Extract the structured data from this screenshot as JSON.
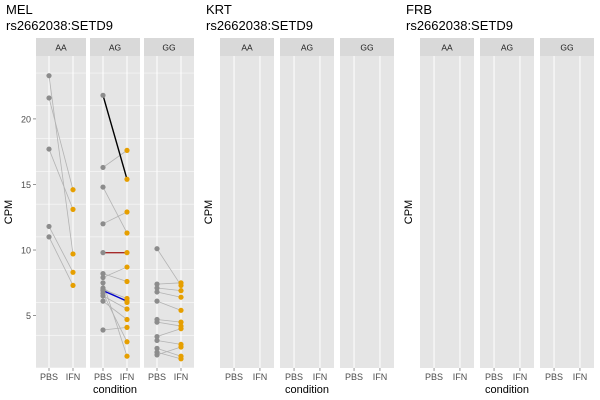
{
  "colors": {
    "panel_bg": "#e5e5e5",
    "strip_bg": "#d9d9d9",
    "grid": "#ffffff",
    "pbs_point": "#8c8c8c",
    "ifn_point": "#e69f00",
    "pair_line": "#b3b3b3",
    "highlight_black": "#000000",
    "highlight_red": "#a52a2a",
    "highlight_blue": "#0000cd",
    "text": "#000000",
    "tick_text": "#4d4d4d"
  },
  "chart_data": [
    {
      "type": "scatter",
      "title": "MEL",
      "subtitle": "rs2662038:SETD9",
      "xlabel": "condition",
      "ylabel": "CPM",
      "ylim": [
        1.0,
        24.8
      ],
      "y_ticks": [
        5,
        10,
        15,
        20
      ],
      "grid": true,
      "facets": [
        {
          "label": "AA",
          "x_ticks": [
            "PBS",
            "IFN"
          ],
          "pairs": [
            {
              "pbs": 23.3,
              "ifn": 9.7
            },
            {
              "pbs": 21.6,
              "ifn": 14.6
            },
            {
              "pbs": 17.7,
              "ifn": 13.1
            },
            {
              "pbs": 11.8,
              "ifn": 8.3
            },
            {
              "pbs": 11.0,
              "ifn": 7.3
            }
          ]
        },
        {
          "label": "AG",
          "x_ticks": [
            "PBS",
            "IFN"
          ],
          "pairs": [
            {
              "pbs": 21.8,
              "ifn": 15.4,
              "highlight": "black"
            },
            {
              "pbs": 16.3,
              "ifn": 17.6
            },
            {
              "pbs": 14.8,
              "ifn": 11.3
            },
            {
              "pbs": 12.0,
              "ifn": 12.9
            },
            {
              "pbs": 9.8,
              "ifn": 9.8,
              "highlight": "red"
            },
            {
              "pbs": 8.2,
              "ifn": 7.6
            },
            {
              "pbs": 7.9,
              "ifn": 8.7
            },
            {
              "pbs": 7.1,
              "ifn": 6.0
            },
            {
              "pbs": 7.0,
              "ifn": 6.3
            },
            {
              "pbs": 6.9,
              "ifn": 6.1,
              "highlight": "blue"
            },
            {
              "pbs": 6.5,
              "ifn": 5.5
            },
            {
              "pbs": 6.1,
              "ifn": 4.7
            },
            {
              "pbs": 3.9,
              "ifn": 4.1
            },
            {
              "pbs": 6.7,
              "ifn": 3.0
            },
            {
              "pbs": 7.5,
              "ifn": 1.9
            }
          ]
        },
        {
          "label": "GG",
          "x_ticks": [
            "PBS",
            "IFN"
          ],
          "pairs": [
            {
              "pbs": 10.1,
              "ifn": 7.3
            },
            {
              "pbs": 7.4,
              "ifn": 7.5
            },
            {
              "pbs": 7.1,
              "ifn": 6.9
            },
            {
              "pbs": 6.8,
              "ifn": 6.4
            },
            {
              "pbs": 6.1,
              "ifn": 5.4
            },
            {
              "pbs": 4.7,
              "ifn": 4.5
            },
            {
              "pbs": 4.5,
              "ifn": 4.2
            },
            {
              "pbs": 3.4,
              "ifn": 4.0
            },
            {
              "pbs": 3.1,
              "ifn": 2.8
            },
            {
              "pbs": 2.5,
              "ifn": 1.9
            },
            {
              "pbs": 2.2,
              "ifn": 1.7
            },
            {
              "pbs": 2.0,
              "ifn": 2.6
            }
          ]
        }
      ]
    },
    {
      "type": "scatter",
      "title": "KRT",
      "subtitle": "rs2662038:SETD9",
      "xlabel": "condition",
      "ylabel": "CPM",
      "grid": false,
      "facets": [
        {
          "label": "AA",
          "x_ticks": [
            "PBS",
            "IFN"
          ],
          "pairs": []
        },
        {
          "label": "AG",
          "x_ticks": [
            "PBS",
            "IFN"
          ],
          "pairs": []
        },
        {
          "label": "GG",
          "x_ticks": [
            "PBS",
            "IFN"
          ],
          "pairs": []
        }
      ]
    },
    {
      "type": "scatter",
      "title": "FRB",
      "subtitle": "rs2662038:SETD9",
      "xlabel": "condition",
      "ylabel": "CPM",
      "grid": false,
      "facets": [
        {
          "label": "AA",
          "x_ticks": [
            "PBS",
            "IFN"
          ],
          "pairs": []
        },
        {
          "label": "AG",
          "x_ticks": [
            "PBS",
            "IFN"
          ],
          "pairs": []
        },
        {
          "label": "GG",
          "x_ticks": [
            "PBS",
            "IFN"
          ],
          "pairs": []
        }
      ]
    }
  ]
}
